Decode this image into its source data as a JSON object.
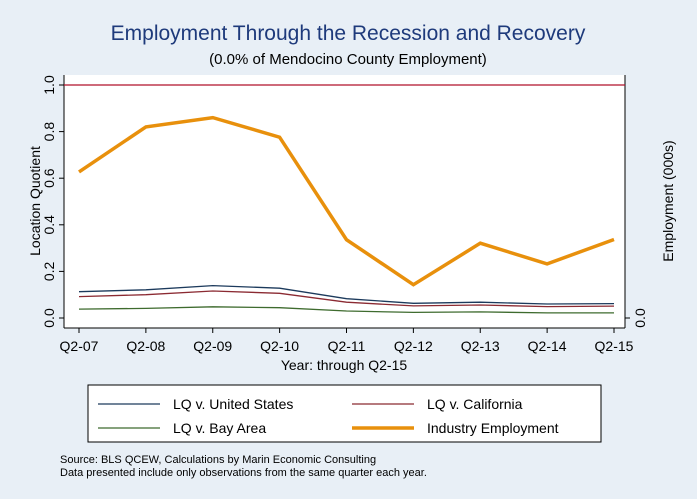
{
  "chart_data": {
    "type": "line",
    "title": "Employment Through the Recession and Recovery",
    "subtitle": "(0.0% of Mendocino County Employment)",
    "xlabel": "Year: through Q2-15",
    "ylabel": "Location Quotient",
    "ylabel_right": "Employment (000s)",
    "categories": [
      "Q2-07",
      "Q2-08",
      "Q2-09",
      "Q2-10",
      "Q2-11",
      "Q2-12",
      "Q2-13",
      "Q2-14",
      "Q2-15"
    ],
    "ylim": [
      0,
      1
    ],
    "yticks": [
      0,
      0.2,
      0.4,
      0.6,
      0.8,
      1.0
    ],
    "ytick_labels": [
      "0.0",
      "0.2",
      "0.4",
      "0.6",
      "0.8",
      "1.0"
    ],
    "right_ytick_labels": [
      "0.0"
    ],
    "reference_line": {
      "value": 1.0,
      "color": "#b0102a"
    },
    "series": [
      {
        "name": "LQ v. United States",
        "color": "#1c3a5c",
        "width": 1.3,
        "values": [
          0.113,
          0.121,
          0.139,
          0.128,
          0.083,
          0.063,
          0.068,
          0.06,
          0.062
        ]
      },
      {
        "name": "LQ v. California",
        "color": "#8b2a32",
        "width": 1.3,
        "values": [
          0.092,
          0.1,
          0.116,
          0.106,
          0.068,
          0.052,
          0.056,
          0.049,
          0.051
        ]
      },
      {
        "name": "LQ v. Bay Area",
        "color": "#3e6b2e",
        "width": 1.3,
        "values": [
          0.038,
          0.041,
          0.048,
          0.044,
          0.03,
          0.024,
          0.026,
          0.022,
          0.022
        ]
      },
      {
        "name": "Industry Employment",
        "color": "#e8900c",
        "width": 3.5,
        "values": [
          0.627,
          0.82,
          0.86,
          0.776,
          0.336,
          0.143,
          0.321,
          0.232,
          0.337
        ]
      }
    ],
    "grid": false,
    "legend_position": "bottom",
    "notes": [
      "Source: BLS QCEW, Calculations by Marin Economic Consulting",
      "Data presented include only observations from the same quarter each year."
    ]
  }
}
